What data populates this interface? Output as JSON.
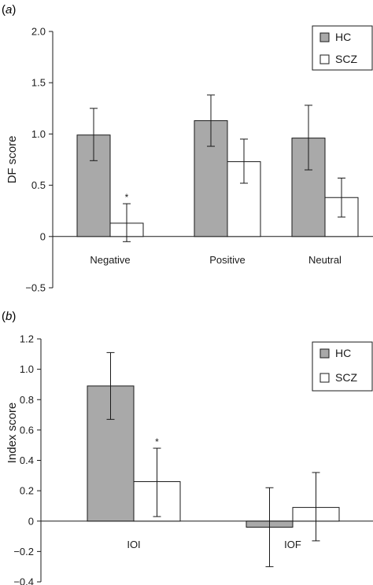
{
  "chart_data": [
    {
      "panel_label": "(a)",
      "type": "bar",
      "ylabel": "DF score",
      "ylim": [
        -0.5,
        2.0
      ],
      "yticks": [
        "2.0",
        "1.5",
        "1.0",
        "0.5",
        "0",
        "−0.5"
      ],
      "ytick_values": [
        2.0,
        1.5,
        1.0,
        0.5,
        0,
        -0.5
      ],
      "categories": [
        "Negative",
        "Positive",
        "Neutral"
      ],
      "series": [
        {
          "name": "HC",
          "color": "#a9a9a9",
          "values": [
            0.99,
            1.13,
            0.96
          ],
          "error_low": [
            0.74,
            0.88,
            0.65
          ],
          "error_high": [
            1.25,
            1.38,
            1.28
          ]
        },
        {
          "name": "SCZ",
          "color": "#ffffff",
          "values": [
            0.13,
            0.73,
            0.38
          ],
          "error_low": [
            -0.05,
            0.52,
            0.19
          ],
          "error_high": [
            0.32,
            0.95,
            0.57
          ]
        }
      ],
      "annotations": [
        {
          "series": "SCZ",
          "category": "Negative",
          "text": "*"
        }
      ],
      "legend_position": "top-right",
      "grid": false
    },
    {
      "panel_label": "(b)",
      "type": "bar",
      "ylabel": "Index score",
      "ylim": [
        -0.4,
        1.2
      ],
      "yticks": [
        "1.2",
        "1.0",
        "0.8",
        "0.6",
        "0.4",
        "0.2",
        "0",
        "−0.2",
        "−0.4"
      ],
      "ytick_values": [
        1.2,
        1.0,
        0.8,
        0.6,
        0.4,
        0.2,
        0,
        -0.2,
        -0.4
      ],
      "categories": [
        "IOI",
        "IOF"
      ],
      "series": [
        {
          "name": "HC",
          "color": "#a9a9a9",
          "values": [
            0.89,
            -0.04
          ],
          "error_low": [
            0.67,
            -0.3
          ],
          "error_high": [
            1.11,
            0.22
          ]
        },
        {
          "name": "SCZ",
          "color": "#ffffff",
          "values": [
            0.26,
            0.09
          ],
          "error_low": [
            0.03,
            -0.13
          ],
          "error_high": [
            0.48,
            0.32
          ]
        }
      ],
      "annotations": [
        {
          "series": "SCZ",
          "category": "IOI",
          "text": "*"
        }
      ],
      "legend_position": "top-right",
      "grid": false
    }
  ]
}
